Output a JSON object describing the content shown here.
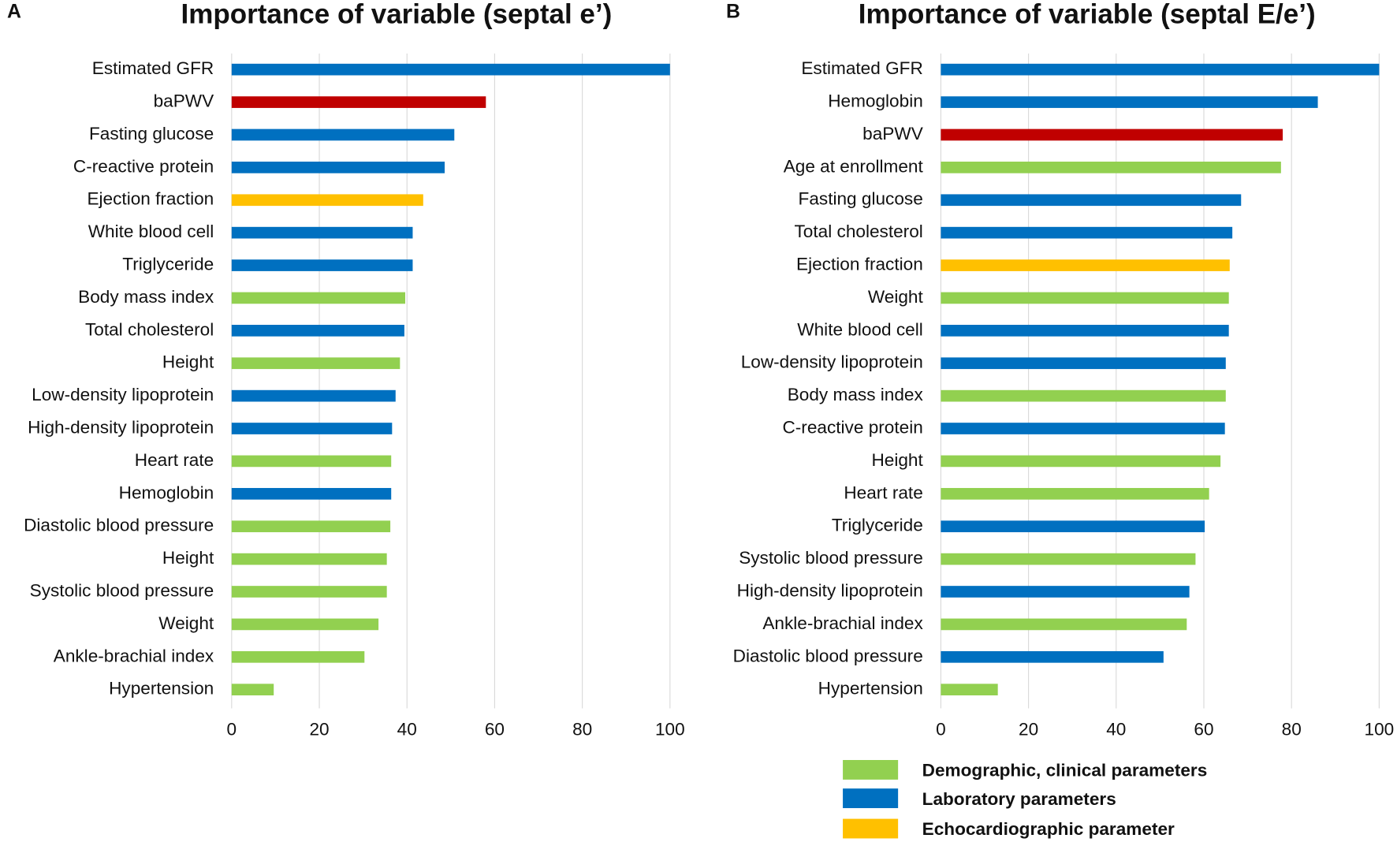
{
  "chart_data": [
    {
      "type": "bar",
      "orientation": "horizontal",
      "panel": "A",
      "title": "Importance of variable (septal e’)",
      "categories": [
        "Estimated GFR",
        "baPWV",
        "Fasting glucose",
        "C-reactive protein",
        "Ejection fraction",
        "White blood cell",
        "Triglyceride",
        "Body mass index",
        "Total cholesterol",
        "Height",
        "Low-density lipoprotein",
        "High-density lipoprotein",
        "Heart rate",
        "Hemoglobin",
        "Diastolic blood pressure",
        "Height",
        "Systolic blood pressure",
        "Weight",
        "Ankle-brachial index",
        "Hypertension"
      ],
      "values": [
        100,
        58,
        50.8,
        48.6,
        43.7,
        41.3,
        41.3,
        39.6,
        39.4,
        38.4,
        37.4,
        36.6,
        36.4,
        36.4,
        36.2,
        35.4,
        35.4,
        33.5,
        30.3,
        9.6
      ],
      "colors": [
        "#0070c0",
        "#c00000",
        "#0070c0",
        "#0070c0",
        "#ffc000",
        "#0070c0",
        "#0070c0",
        "#92d050",
        "#0070c0",
        "#92d050",
        "#0070c0",
        "#0070c0",
        "#92d050",
        "#0070c0",
        "#92d050",
        "#92d050",
        "#92d050",
        "#92d050",
        "#92d050",
        "#92d050"
      ],
      "xlim": [
        0,
        100
      ],
      "xticks": [
        0,
        20,
        40,
        60,
        80,
        100
      ],
      "grid": true
    },
    {
      "type": "bar",
      "orientation": "horizontal",
      "panel": "B",
      "title": "Importance of variable (septal E/e’)",
      "categories": [
        "Estimated GFR",
        "Hemoglobin",
        "baPWV",
        "Age at enrollment",
        "Fasting glucose",
        "Total cholesterol",
        "Ejection fraction",
        "Weight",
        "White blood cell",
        "Low-density lipoprotein",
        "Body mass index",
        "C-reactive protein",
        "Height",
        "Heart rate",
        "Triglyceride",
        "Systolic blood pressure",
        "High-density lipoprotein",
        "Ankle-brachial index",
        "Diastolic blood pressure",
        "Hypertension"
      ],
      "values": [
        100,
        86,
        78,
        77.6,
        68.5,
        66.5,
        65.9,
        65.7,
        65.7,
        65,
        65,
        64.8,
        63.8,
        61.2,
        60.2,
        58.1,
        56.7,
        56.1,
        50.8,
        13
      ],
      "colors": [
        "#0070c0",
        "#0070c0",
        "#c00000",
        "#92d050",
        "#0070c0",
        "#0070c0",
        "#ffc000",
        "#92d050",
        "#0070c0",
        "#0070c0",
        "#92d050",
        "#0070c0",
        "#92d050",
        "#92d050",
        "#0070c0",
        "#92d050",
        "#0070c0",
        "#92d050",
        "#0070c0",
        "#92d050"
      ],
      "xlim": [
        0,
        100
      ],
      "xticks": [
        0,
        20,
        40,
        60,
        80,
        100
      ],
      "grid": true
    }
  ],
  "legend": [
    {
      "name": "Demographic, clinical parameters",
      "color": "#92d050"
    },
    {
      "name": "Laboratory parameters",
      "color": "#0070c0"
    },
    {
      "name": "Echocardiographic parameter",
      "color": "#ffc000"
    }
  ]
}
